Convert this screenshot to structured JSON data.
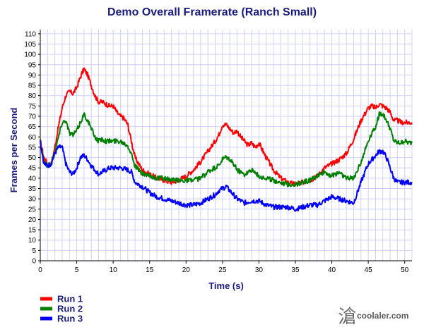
{
  "chart_data": {
    "type": "line",
    "title": "Demo Overall Framerate (Ranch Small)",
    "xlabel": "Time (s)",
    "ylabel": "Frames per Second",
    "xlim": [
      0,
      51
    ],
    "ylim": [
      0,
      112
    ],
    "xticks": [
      0,
      5,
      10,
      15,
      20,
      25,
      30,
      35,
      40,
      45,
      50
    ],
    "yticks": [
      0,
      5,
      10,
      15,
      20,
      25,
      30,
      35,
      40,
      45,
      50,
      55,
      60,
      65,
      70,
      75,
      80,
      85,
      90,
      95,
      100,
      105,
      110
    ],
    "grid": true,
    "legend_position": "bottom-left",
    "series": [
      {
        "name": "Run 1",
        "color": "#ff0000",
        "x": [
          0,
          0.5,
          1,
          1.5,
          2,
          2.5,
          3,
          3.5,
          4,
          4.5,
          5,
          5.5,
          6,
          6.5,
          7,
          7.5,
          8,
          8.5,
          9,
          9.5,
          10,
          10.5,
          11,
          11.5,
          12,
          12.5,
          13,
          14,
          15,
          16,
          17,
          18,
          19,
          20,
          21,
          22,
          23,
          24,
          24.5,
          25,
          25.5,
          26,
          26.5,
          27,
          27.5,
          28,
          28.5,
          29,
          29.5,
          30,
          31,
          32,
          33,
          34,
          35,
          36,
          37,
          38,
          39,
          40,
          41,
          42,
          43,
          44,
          44.5,
          45,
          45.5,
          46,
          46.5,
          47,
          47.5,
          48,
          48.5,
          49,
          49.5,
          50,
          50.5,
          51
        ],
        "values": [
          58,
          50,
          47,
          47,
          55,
          65,
          74,
          80,
          82,
          81,
          84,
          89,
          93,
          90,
          85,
          80,
          77,
          77,
          76,
          75,
          75,
          72,
          70,
          69,
          66,
          58,
          50,
          44,
          42,
          40,
          39,
          38,
          39,
          41,
          44,
          48,
          53,
          58,
          61,
          66,
          66,
          64,
          62,
          63,
          60,
          58,
          56,
          57,
          55,
          57,
          50,
          44,
          40,
          38,
          37,
          38,
          39,
          41,
          45,
          47,
          49,
          52,
          59,
          68,
          71,
          74,
          75,
          74,
          76,
          75,
          74,
          72,
          68,
          68,
          67,
          67,
          67,
          67
        ]
      },
      {
        "name": "Run 2",
        "color": "#008000",
        "x": [
          0,
          0.5,
          1,
          1.5,
          2,
          2.5,
          3,
          3.5,
          4,
          4.5,
          5,
          5.5,
          6,
          6.5,
          7,
          7.5,
          8,
          8.5,
          9,
          9.5,
          10,
          11,
          12,
          12.5,
          13,
          14,
          15,
          16,
          17,
          18,
          19,
          20,
          21,
          22,
          23,
          24,
          24.5,
          25,
          25.5,
          26,
          26.5,
          27,
          28,
          29,
          30,
          31,
          32,
          33,
          34,
          35,
          36,
          37,
          38,
          39,
          40,
          41,
          42,
          43,
          44,
          45,
          45.5,
          46,
          46.5,
          47,
          47.5,
          48,
          48.5,
          49,
          49.5,
          50,
          50.5,
          51
        ],
        "values": [
          58,
          48,
          46,
          47,
          53,
          60,
          67,
          68,
          62,
          61,
          63,
          67,
          71,
          68,
          64,
          60,
          58,
          59,
          58,
          58,
          58,
          58,
          56,
          52,
          46,
          42,
          41,
          40,
          40,
          39,
          39,
          39,
          39,
          40,
          43,
          45,
          46,
          49,
          50,
          49,
          47,
          44,
          42,
          44,
          41,
          40,
          39,
          38,
          37,
          37,
          38,
          39,
          41,
          43,
          41,
          43,
          40,
          40,
          48,
          58,
          62,
          65,
          71,
          71,
          68,
          64,
          58,
          57,
          57,
          58,
          57,
          57
        ]
      },
      {
        "name": "Run 3",
        "color": "#0000ff",
        "x": [
          0,
          0.5,
          1,
          1.5,
          2,
          2.5,
          3,
          3.5,
          4,
          4.5,
          5,
          5.5,
          6,
          6.5,
          7,
          7.5,
          8,
          8.5,
          9,
          9.5,
          10,
          11,
          12,
          12.5,
          13,
          14,
          15,
          16,
          17,
          18,
          19,
          20,
          21,
          22,
          23,
          24,
          24.5,
          25,
          25.5,
          26,
          26.5,
          27,
          28,
          29,
          30,
          31,
          32,
          33,
          34,
          35,
          36,
          37,
          38,
          39,
          40,
          41,
          42,
          43,
          44,
          45,
          45.5,
          46,
          46.5,
          47,
          47.5,
          48,
          48.5,
          49,
          49.5,
          50,
          50.5,
          51
        ],
        "values": [
          58,
          47,
          46,
          47,
          52,
          55,
          55,
          47,
          43,
          42,
          45,
          50,
          51,
          49,
          46,
          44,
          42,
          43,
          44,
          45,
          45,
          45,
          44,
          43,
          38,
          36,
          33,
          31,
          30,
          29,
          28,
          27,
          27,
          28,
          30,
          32,
          34,
          35,
          36,
          34,
          32,
          30,
          28,
          29,
          29,
          27,
          26,
          26,
          26,
          25,
          26,
          27,
          27,
          29,
          31,
          30,
          29,
          28,
          38,
          47,
          49,
          51,
          53,
          53,
          50,
          45,
          40,
          38,
          38,
          38,
          38,
          38
        ]
      }
    ]
  },
  "watermark": {
    "glyph": "滄",
    "text": "coolaler.com"
  }
}
